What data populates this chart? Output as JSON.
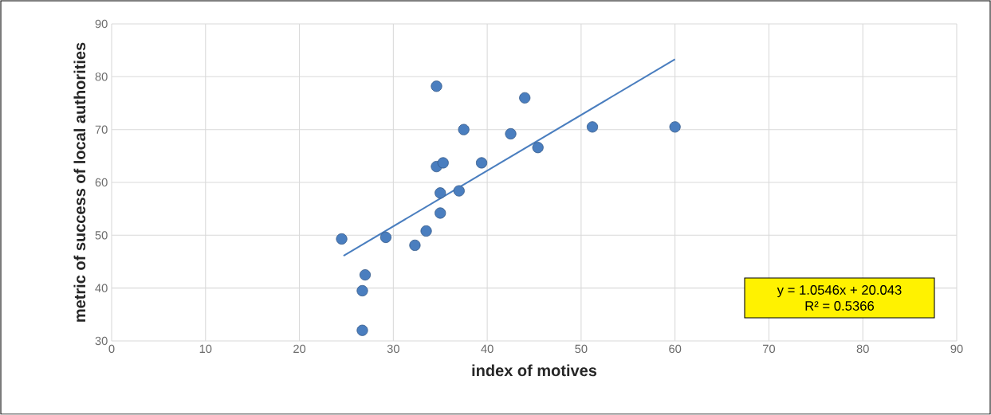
{
  "chart_data": {
    "type": "scatter",
    "xlabel": "index of motives",
    "ylabel": "metric of success of local authorities",
    "series": [
      {
        "color": "#3a74c2",
        "marker": "circle",
        "x": [
          24.5,
          26.7,
          26.7,
          27,
          29.2,
          32.3,
          33.5,
          34.6,
          34.6,
          35.3,
          35,
          35,
          37,
          37.5,
          39.4,
          42.5,
          44,
          45.4,
          51.2,
          60
        ],
        "values": [
          49.3,
          32,
          39.5,
          42.5,
          49.6,
          48.1,
          50.8,
          78.2,
          63,
          63.7,
          58,
          54.2,
          58.4,
          70,
          63.7,
          69.2,
          76,
          66.6,
          70.5,
          70.5
        ]
      },
      {
        "type": "line",
        "color": "#4a7ebf",
        "marker": "none",
        "x": [
          24.7,
          60
        ],
        "values": [
          46.1,
          83.3
        ]
      }
    ],
    "annotations": [
      "y = 1.0546x + 20.043",
      "R² = 0.5366"
    ],
    "xlim": [
      0,
      90
    ],
    "ylim": [
      30,
      90
    ],
    "xticks": [
      0,
      10,
      20,
      30,
      40,
      50,
      60,
      70,
      80,
      90
    ],
    "yticks": [
      30,
      40,
      50,
      60,
      70,
      80,
      90
    ],
    "grid": true
  }
}
